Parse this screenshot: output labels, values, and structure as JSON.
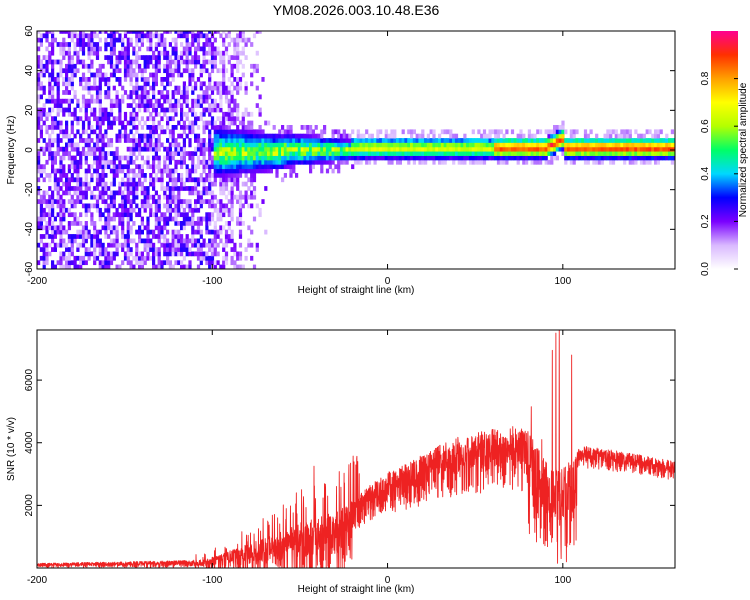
{
  "title": "YM08.2026.003.10.48.E36",
  "chart_data": [
    {
      "type": "heatmap",
      "name": "spectrogram",
      "xlabel": "Height of straight line (km)",
      "ylabel": "Frequency (Hz)",
      "xlim": [
        -200,
        164
      ],
      "ylim": [
        -60,
        60
      ],
      "xticks": [
        "-200",
        "-100",
        "0",
        "100"
      ],
      "yticks": [
        "-60",
        "-40",
        "-20",
        "0",
        "20",
        "40",
        "60"
      ],
      "xtick_values": [
        -200,
        -100,
        0,
        100
      ],
      "ytick_values": [
        -60,
        -40,
        -20,
        0,
        20,
        40,
        60
      ],
      "colorbar": {
        "label": "Normalized spectral amplitude",
        "range": [
          0,
          1
        ],
        "ticks": [
          "0.0",
          "0.2",
          "0.4",
          "0.6",
          "0.8"
        ],
        "tick_values": [
          0,
          0.2,
          0.4,
          0.6,
          0.8
        ],
        "colors": [
          "#ffffff",
          "#d9b8ff",
          "#7a00ff",
          "#0000ff",
          "#00d8ff",
          "#00ff66",
          "#b4ff00",
          "#ffff00",
          "#ffa000",
          "#ff3000",
          "#ff0090"
        ]
      },
      "regions": [
        {
          "description": "broadband noise",
          "x_range": [
            -200,
            -70
          ],
          "freq_span": [
            -60,
            60
          ]
        },
        {
          "description": "dispersed signal",
          "x_range": [
            -100,
            -20
          ],
          "freq_span": [
            -15,
            15
          ]
        },
        {
          "description": "narrow line",
          "x_range": [
            -20,
            164
          ],
          "center_freq": 0,
          "freq_span": [
            -5,
            5
          ]
        }
      ]
    },
    {
      "type": "line",
      "name": "snr",
      "color": "#ee2222",
      "xlabel": "Height of straight line (km)",
      "ylabel": "SNR (10 * v/v)",
      "xlim": [
        -200,
        164
      ],
      "ylim": [
        0,
        7600
      ],
      "xticks": [
        "-200",
        "-100",
        "0",
        "100"
      ],
      "yticks": [
        "2000",
        "4000",
        "6000"
      ],
      "xtick_values": [
        -200,
        -100,
        0,
        100
      ],
      "ytick_values": [
        2000,
        4000,
        6000
      ],
      "envelope": {
        "x": [
          -200,
          -150,
          -110,
          -100,
          -90,
          -80,
          -70,
          -60,
          -50,
          -40,
          -30,
          -20,
          -10,
          0,
          10,
          20,
          30,
          40,
          50,
          60,
          70,
          80,
          90,
          95,
          100,
          105,
          110,
          120,
          130,
          140,
          150,
          164
        ],
        "y": [
          150,
          200,
          250,
          350,
          550,
          750,
          950,
          1200,
          1450,
          1600,
          1800,
          2150,
          2650,
          3050,
          3300,
          3650,
          3950,
          4200,
          4300,
          4450,
          4550,
          4400,
          3400,
          3250,
          3150,
          3500,
          3900,
          3850,
          3750,
          3650,
          3550,
          3400
        ]
      },
      "spikes": [
        {
          "x": -52,
          "y": 2400
        },
        {
          "x": -49,
          "y": 2500
        },
        {
          "x": -42,
          "y": 3250
        },
        {
          "x": -22,
          "y": 3300
        },
        {
          "x": -17,
          "y": 3400
        },
        {
          "x": 82,
          "y": 5150
        },
        {
          "x": 88,
          "y": 4100
        },
        {
          "x": 94,
          "y": 6950
        },
        {
          "x": 96,
          "y": 7500
        },
        {
          "x": 97,
          "y": 150
        },
        {
          "x": 98,
          "y": 7600
        },
        {
          "x": 99,
          "y": 300
        },
        {
          "x": 102,
          "y": 200
        },
        {
          "x": 105,
          "y": 6800
        }
      ]
    }
  ]
}
